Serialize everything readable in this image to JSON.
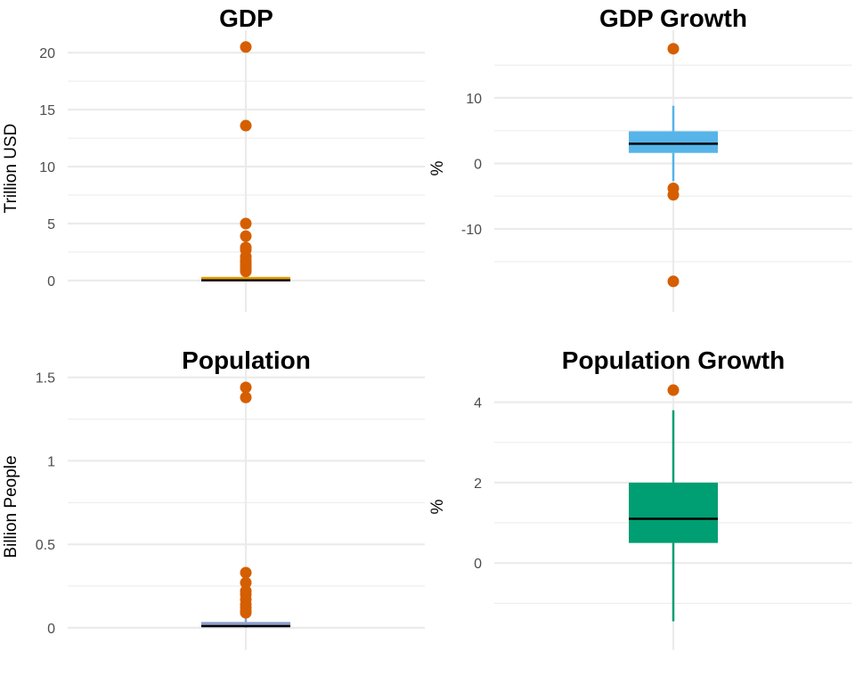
{
  "chart_data": [
    {
      "type": "boxplot",
      "title": "GDP",
      "ylabel": "Trillion USD",
      "ylim": [
        -1.8,
        21.5
      ],
      "yticks": [
        0,
        5,
        10,
        15,
        20
      ],
      "ytick_labels": [
        "0",
        "5",
        "10",
        "15",
        "20"
      ],
      "grid": true,
      "box_color": "#E69F00",
      "box": {
        "q1": 0.0,
        "median": 0.02,
        "q3": 0.25,
        "whisker_low": 0.0,
        "whisker_high": 0.6
      },
      "outliers": [
        20.5,
        13.6,
        5.0,
        3.9,
        2.9,
        2.7,
        2.1,
        1.8,
        1.6,
        1.4,
        1.2,
        1.0,
        0.8
      ],
      "outlier_color": "#D55E00"
    },
    {
      "type": "boxplot",
      "title": "GDP Growth",
      "ylabel": "%",
      "ylim": [
        -21,
        19.5
      ],
      "yticks": [
        -10,
        0,
        10
      ],
      "ytick_labels": [
        "-10",
        "0",
        "10"
      ],
      "grid": true,
      "box_color": "#56B4E9",
      "box": {
        "q1": 1.6,
        "median": 3.0,
        "q3": 4.9,
        "whisker_low": -2.7,
        "whisker_high": 8.8
      },
      "outliers": [
        17.5,
        -3.8,
        -4.8,
        -18.0
      ],
      "outlier_color": "#D55E00"
    },
    {
      "type": "boxplot",
      "title": "Population",
      "ylabel": "Billion People",
      "ylim": [
        -0.07,
        1.52
      ],
      "yticks": [
        0,
        0.5,
        1,
        1.5
      ],
      "ytick_labels": [
        "0",
        "0.5",
        "1",
        "1.5"
      ],
      "grid": true,
      "box_color": "#8DA0CB",
      "box": {
        "q1": 0.004,
        "median": 0.01,
        "q3": 0.035,
        "whisker_low": 0.0,
        "whisker_high": 0.075
      },
      "outliers": [
        1.44,
        1.38,
        0.33,
        0.27,
        0.22,
        0.2,
        0.17,
        0.14,
        0.12,
        0.1,
        0.09
      ],
      "outlier_color": "#D55E00"
    },
    {
      "type": "boxplot",
      "title": "Population Growth",
      "ylabel": "%",
      "ylim": [
        -1.9,
        4.7
      ],
      "yticks": [
        0,
        2,
        4
      ],
      "ytick_labels": [
        "0",
        "2",
        "4"
      ],
      "grid": true,
      "box_color": "#009E73",
      "box": {
        "q1": 0.5,
        "median": 1.1,
        "q3": 2.0,
        "whisker_low": -1.45,
        "whisker_high": 3.8
      },
      "outliers": [
        4.3
      ],
      "outlier_color": "#D55E00"
    }
  ]
}
